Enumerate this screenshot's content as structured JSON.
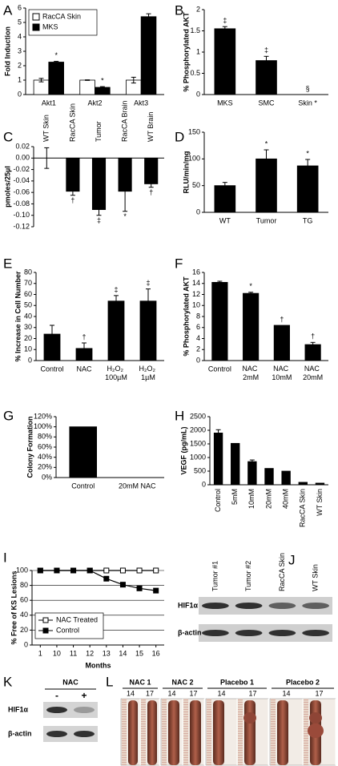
{
  "chart_data": [
    {
      "type": "bar",
      "label": "A",
      "ylabel": "Fold Induction",
      "categories": [
        "Akt1",
        "Akt2",
        "Akt3"
      ],
      "series": [
        {
          "name": "RacCA Skin",
          "color": "#ffffff",
          "values": [
            1,
            1,
            1
          ],
          "errors": [
            0.12,
            0.02,
            0.2
          ],
          "markers": [
            null,
            null,
            null
          ]
        },
        {
          "name": "MKS",
          "color": "#000000",
          "values": [
            2.25,
            0.5,
            5.4
          ],
          "errors": [
            0.05,
            0.05,
            0.2
          ],
          "markers": [
            "*",
            "*",
            null
          ]
        }
      ],
      "ylim": [
        0,
        6
      ],
      "yticks": [
        0,
        1,
        2,
        3,
        4,
        5,
        6
      ],
      "legend": "upper left"
    },
    {
      "type": "bar",
      "label": "B",
      "ylabel": "% Phosphorylated AKT",
      "categories": [
        "MKS",
        "SMC",
        "Skin *"
      ],
      "series": [
        {
          "color": "#000000",
          "values": [
            1.55,
            0.8,
            0
          ],
          "errors": [
            0.05,
            0.1,
            null
          ],
          "markers": [
            "‡",
            "‡",
            "§"
          ]
        }
      ],
      "ylim": [
        0,
        2
      ],
      "yticks": [
        0,
        0.5,
        1,
        1.5,
        2
      ]
    },
    {
      "type": "bar",
      "label": "C",
      "ylabel": "pmoles/25µl",
      "categories": [
        "WT Skin",
        "RacCA Skin",
        "Tumor",
        "RacCA Brain",
        "WT Brain"
      ],
      "series": [
        {
          "color": "#000000",
          "values": [
            0,
            -0.058,
            -0.09,
            -0.058,
            -0.045
          ],
          "errors": [
            0.018,
            0.007,
            0.01,
            0.035,
            0.006
          ],
          "markers": [
            null,
            "†",
            "‡",
            "*",
            "†"
          ]
        }
      ],
      "ylim": [
        -0.12,
        0.02
      ],
      "yticks": [
        0.02,
        {
          "value": 0,
          "label": "0.00"
        },
        -0.02,
        -0.04,
        -0.06,
        -0.08,
        {
          "value": -0.1,
          "label": "-0.10"
        },
        -0.12
      ],
      "xtick_position": "top",
      "xtick_rotation": 90
    },
    {
      "type": "bar",
      "label": "D",
      "ylabel": "RLU/min/mg",
      "categories": [
        "WT",
        "Tumor",
        "TG"
      ],
      "series": [
        {
          "color": "#000000",
          "values": [
            50,
            100,
            87
          ],
          "errors": [
            6,
            17,
            12
          ],
          "markers": [
            null,
            "*",
            "*"
          ]
        }
      ],
      "ylim": [
        0,
        150
      ],
      "yticks": [
        0,
        50,
        100,
        150
      ]
    },
    {
      "type": "bar",
      "label": "E",
      "ylabel": "% Increase in Cell Number",
      "categories": [
        "Control",
        "NAC",
        "H₂O₂ 100µM",
        "H₂O₂ 1µM"
      ],
      "series": [
        {
          "color": "#000000",
          "values": [
            24,
            11,
            54,
            54
          ],
          "errors": [
            8,
            5,
            5,
            11
          ],
          "markers": [
            null,
            "†",
            "‡",
            "‡"
          ]
        }
      ],
      "ylim": [
        0,
        80
      ],
      "yticks": [
        0,
        10,
        20,
        30,
        40,
        50,
        60,
        70,
        80
      ]
    },
    {
      "type": "bar",
      "label": "F",
      "ylabel": "% Phosphorylated AKT",
      "categories": [
        "Control",
        "NAC 2mM",
        "NAC 10mM",
        "NAC 20mM"
      ],
      "series": [
        {
          "color": "#000000",
          "values": [
            14.2,
            12.2,
            6.4,
            2.9
          ],
          "errors": [
            0.2,
            0.2,
            null,
            0.4
          ],
          "markers": [
            null,
            "*",
            "†",
            "†"
          ]
        }
      ],
      "ylim": [
        0,
        16
      ],
      "yticks": [
        0,
        2,
        4,
        6,
        8,
        10,
        12,
        14,
        16
      ]
    },
    {
      "type": "bar",
      "label": "G",
      "ylabel": "Colony Formation",
      "categories": [
        "Control",
        "20mM NAC"
      ],
      "series": [
        {
          "color": "#000000",
          "values": [
            100,
            0
          ]
        }
      ],
      "ylim": [
        0,
        120
      ],
      "yticks": [
        {
          "value": 0,
          "label": "0%"
        },
        {
          "value": 20,
          "label": "20%"
        },
        {
          "value": 40,
          "label": "40%"
        },
        {
          "value": 60,
          "label": "60%"
        },
        {
          "value": 80,
          "label": "80%"
        },
        {
          "value": 100,
          "label": "100%"
        },
        {
          "value": 120,
          "label": "120%"
        }
      ]
    },
    {
      "type": "bar",
      "label": "H",
      "ylabel": "VEGF (pg/mL)",
      "categories": [
        "Control",
        "5mM",
        "10mM",
        "20mM",
        "40mM",
        "RacCA Skin",
        "WT Skin"
      ],
      "series": [
        {
          "color": "#000000",
          "values": [
            1900,
            1520,
            850,
            600,
            500,
            90,
            60
          ],
          "errors": [
            120,
            null,
            60,
            null,
            null,
            null,
            null
          ]
        }
      ],
      "ylim": [
        0,
        2500
      ],
      "yticks": [
        0,
        500,
        1000,
        1500,
        2000,
        2500
      ],
      "xtick_rotation": 90
    },
    {
      "type": "line",
      "label": "I",
      "ylabel": "% Free of KS Lesions",
      "xlabel": "Months",
      "categories": [
        "1",
        "10",
        "11",
        "12",
        "13",
        "14",
        "15",
        "16"
      ],
      "series": [
        {
          "name": "NAC Treated",
          "color": "#000000",
          "marker": "square-open",
          "values": [
            100,
            100,
            100,
            100,
            100,
            100,
            100,
            100
          ]
        },
        {
          "name": "Control",
          "color": "#000000",
          "marker": "square-filled",
          "values": [
            100,
            100,
            100,
            100,
            89,
            81,
            76,
            73
          ]
        }
      ],
      "ylim": [
        0,
        100
      ],
      "yticks": [
        0,
        20,
        40,
        60,
        80,
        100
      ],
      "grid": true,
      "legend": "lower left"
    }
  ],
  "blots": [
    {
      "label": "J",
      "lanes": [
        "Tumor #1",
        "Tumor #2",
        "RacCA Skin",
        "WT Skin"
      ],
      "rows": [
        "HIF1α",
        "β-actin"
      ]
    },
    {
      "label": "K",
      "header": "NAC",
      "lanes": [
        "-",
        "+"
      ],
      "rows": [
        "HIF1α",
        "β-actin"
      ]
    }
  ],
  "photos": {
    "label": "L",
    "groups": [
      {
        "name": "NAC 1",
        "days": [
          "14",
          "17"
        ]
      },
      {
        "name": "NAC 2",
        "days": [
          "14",
          "17"
        ]
      },
      {
        "name": "Placebo 1",
        "days": [
          "14",
          "17"
        ]
      },
      {
        "name": "Placebo 2",
        "days": [
          "14",
          "17"
        ]
      }
    ]
  }
}
